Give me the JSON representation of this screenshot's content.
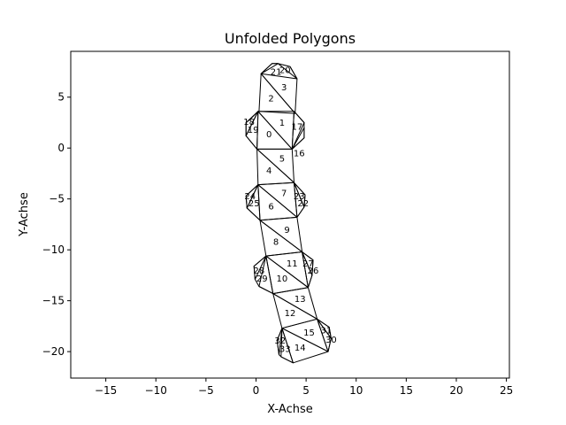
{
  "chart_data": {
    "type": "line",
    "title": "Unfolded Polygons",
    "xlabel": "X-Achse",
    "ylabel": "Y-Achse",
    "xlim": [
      -18.5,
      25.3
    ],
    "ylim": [
      -22.6,
      9.5
    ],
    "xticks": [
      -15,
      -10,
      -5,
      0,
      5,
      10,
      15,
      20,
      25
    ],
    "yticks": [
      5,
      0,
      -5,
      -10,
      -15,
      -20
    ],
    "grid": false,
    "polygons": [
      {
        "label": "0",
        "points": [
          [
            0.2,
            3.6
          ],
          [
            3.6,
            -0.1
          ],
          [
            0.1,
            -0.1
          ]
        ]
      },
      {
        "label": "1",
        "points": [
          [
            0.2,
            3.6
          ],
          [
            3.8,
            3.6
          ],
          [
            3.6,
            -0.1
          ]
        ]
      },
      {
        "label": "2",
        "points": [
          [
            0.3,
            3.6
          ],
          [
            3.9,
            3.4
          ],
          [
            0.5,
            7.3
          ]
        ]
      },
      {
        "label": "3",
        "points": [
          [
            0.5,
            7.3
          ],
          [
            4.1,
            6.8
          ],
          [
            3.9,
            3.4
          ]
        ]
      },
      {
        "label": "4",
        "points": [
          [
            0.1,
            -0.1
          ],
          [
            0.2,
            -3.6
          ],
          [
            3.8,
            -3.4
          ]
        ]
      },
      {
        "label": "5",
        "points": [
          [
            0.1,
            -0.1
          ],
          [
            3.6,
            -0.1
          ],
          [
            3.8,
            -3.4
          ]
        ]
      },
      {
        "label": "6",
        "points": [
          [
            0.2,
            -3.6
          ],
          [
            0.4,
            -7.1
          ],
          [
            4.1,
            -6.8
          ]
        ]
      },
      {
        "label": "7",
        "points": [
          [
            0.2,
            -3.6
          ],
          [
            3.8,
            -3.4
          ],
          [
            4.1,
            -6.8
          ]
        ]
      },
      {
        "label": "8",
        "points": [
          [
            0.4,
            -7.1
          ],
          [
            1.0,
            -10.6
          ],
          [
            4.6,
            -10.2
          ]
        ]
      },
      {
        "label": "9",
        "points": [
          [
            0.4,
            -7.1
          ],
          [
            4.1,
            -6.8
          ],
          [
            4.6,
            -10.2
          ]
        ]
      },
      {
        "label": "10",
        "points": [
          [
            1.0,
            -10.6
          ],
          [
            1.7,
            -14.3
          ],
          [
            5.2,
            -13.7
          ]
        ]
      },
      {
        "label": "11",
        "points": [
          [
            1.0,
            -10.6
          ],
          [
            4.6,
            -10.2
          ],
          [
            5.2,
            -13.7
          ]
        ]
      },
      {
        "label": "12",
        "points": [
          [
            1.7,
            -14.3
          ],
          [
            2.6,
            -17.7
          ],
          [
            6.1,
            -16.8
          ]
        ]
      },
      {
        "label": "13",
        "points": [
          [
            1.7,
            -14.3
          ],
          [
            5.2,
            -13.7
          ],
          [
            6.1,
            -16.8
          ]
        ]
      },
      {
        "label": "14",
        "points": [
          [
            2.6,
            -17.7
          ],
          [
            3.7,
            -21.1
          ],
          [
            7.2,
            -20.0
          ]
        ]
      },
      {
        "label": "15",
        "points": [
          [
            2.6,
            -17.7
          ],
          [
            6.1,
            -16.8
          ],
          [
            7.2,
            -20.0
          ]
        ]
      },
      {
        "label": "16",
        "points": [
          [
            3.6,
            -0.1
          ],
          [
            4.8,
            1.0
          ],
          [
            4.8,
            2.0
          ]
        ]
      },
      {
        "label": "17",
        "points": [
          [
            3.6,
            -0.1
          ],
          [
            3.8,
            3.6
          ],
          [
            4.8,
            2.5
          ]
        ]
      },
      {
        "label": "18",
        "points": [
          [
            0.2,
            3.6
          ],
          [
            -1.0,
            2.5
          ],
          [
            -1.0,
            1.2
          ]
        ]
      },
      {
        "label": "19",
        "points": [
          [
            0.2,
            3.6
          ],
          [
            0.1,
            -0.1
          ],
          [
            -1.0,
            1.2
          ]
        ]
      },
      {
        "label": "20",
        "points": [
          [
            2.2,
            8.3
          ],
          [
            3.4,
            8.0
          ],
          [
            4.1,
            6.8
          ]
        ]
      },
      {
        "label": "21",
        "points": [
          [
            0.5,
            7.3
          ],
          [
            1.6,
            8.3
          ],
          [
            2.2,
            8.3
          ]
        ]
      },
      {
        "label": "22",
        "points": [
          [
            3.8,
            -3.4
          ],
          [
            4.9,
            -4.6
          ],
          [
            4.8,
            -5.8
          ]
        ]
      },
      {
        "label": "23",
        "points": [
          [
            3.8,
            -3.4
          ],
          [
            4.1,
            -6.8
          ],
          [
            4.8,
            -5.8
          ]
        ]
      },
      {
        "label": "24",
        "points": [
          [
            0.2,
            -3.6
          ],
          [
            -1.0,
            -4.7
          ],
          [
            -0.9,
            -5.9
          ]
        ]
      },
      {
        "label": "25",
        "points": [
          [
            0.2,
            -3.6
          ],
          [
            0.4,
            -7.1
          ],
          [
            -0.9,
            -5.9
          ]
        ]
      },
      {
        "label": "26",
        "points": [
          [
            4.6,
            -10.2
          ],
          [
            5.7,
            -11.0
          ],
          [
            5.6,
            -12.5
          ]
        ]
      },
      {
        "label": "27",
        "points": [
          [
            4.6,
            -10.2
          ],
          [
            5.2,
            -13.7
          ],
          [
            5.6,
            -12.5
          ]
        ]
      },
      {
        "label": "28",
        "points": [
          [
            1.0,
            -10.6
          ],
          [
            -0.2,
            -11.6
          ],
          [
            -0.1,
            -12.9
          ]
        ]
      },
      {
        "label": "29",
        "points": [
          [
            1.0,
            -10.6
          ],
          [
            1.7,
            -14.3
          ],
          [
            0.3,
            -13.6
          ]
        ]
      },
      {
        "label": "30",
        "points": [
          [
            6.1,
            -16.8
          ],
          [
            7.3,
            -17.6
          ],
          [
            7.5,
            -18.7
          ]
        ]
      },
      {
        "label": "31",
        "points": [
          [
            6.1,
            -16.8
          ],
          [
            7.2,
            -20.0
          ],
          [
            7.5,
            -18.7
          ]
        ]
      },
      {
        "label": "32",
        "points": [
          [
            2.6,
            -17.7
          ],
          [
            2.1,
            -18.9
          ],
          [
            2.3,
            -20.3
          ]
        ]
      },
      {
        "label": "33",
        "points": [
          [
            2.6,
            -17.7
          ],
          [
            3.7,
            -21.1
          ],
          [
            2.5,
            -20.5
          ]
        ]
      }
    ],
    "outlines": [
      {
        "points": [
          [
            0.5,
            7.3
          ],
          [
            1.6,
            8.3
          ],
          [
            2.2,
            8.3
          ],
          [
            3.4,
            8.0
          ],
          [
            4.1,
            6.8
          ]
        ]
      },
      {
        "points": [
          [
            3.8,
            3.6
          ],
          [
            4.8,
            2.5
          ],
          [
            4.8,
            1.0
          ],
          [
            3.6,
            -0.1
          ]
        ]
      },
      {
        "points": [
          [
            0.2,
            3.6
          ],
          [
            -0.6,
            2.8
          ],
          [
            -1.0,
            2.5
          ],
          [
            -1.0,
            1.2
          ],
          [
            0.1,
            -0.1
          ]
        ]
      },
      {
        "points": [
          [
            3.8,
            -3.4
          ],
          [
            4.9,
            -4.6
          ],
          [
            4.8,
            -5.8
          ],
          [
            4.1,
            -6.8
          ]
        ]
      },
      {
        "points": [
          [
            0.2,
            -3.6
          ],
          [
            -1.0,
            -4.7
          ],
          [
            -0.9,
            -5.9
          ],
          [
            0.4,
            -7.1
          ]
        ]
      },
      {
        "points": [
          [
            4.6,
            -10.2
          ],
          [
            5.7,
            -11.0
          ],
          [
            5.6,
            -12.5
          ],
          [
            5.2,
            -13.7
          ]
        ]
      },
      {
        "points": [
          [
            1.0,
            -10.6
          ],
          [
            -0.2,
            -11.6
          ],
          [
            -0.1,
            -12.9
          ],
          [
            0.3,
            -13.6
          ],
          [
            1.7,
            -14.3
          ]
        ]
      },
      {
        "points": [
          [
            6.1,
            -16.8
          ],
          [
            7.3,
            -17.6
          ],
          [
            7.5,
            -18.7
          ],
          [
            7.2,
            -20.0
          ]
        ]
      },
      {
        "points": [
          [
            2.6,
            -17.7
          ],
          [
            2.1,
            -18.9
          ],
          [
            2.3,
            -20.3
          ],
          [
            2.5,
            -20.5
          ],
          [
            3.7,
            -21.1
          ]
        ]
      }
    ],
    "label_positions": [
      {
        "label": "0",
        "x": 1.3,
        "y": 1.3
      },
      {
        "label": "1",
        "x": 2.6,
        "y": 2.4
      },
      {
        "label": "2",
        "x": 1.5,
        "y": 4.8
      },
      {
        "label": "3",
        "x": 2.8,
        "y": 5.9
      },
      {
        "label": "4",
        "x": 1.3,
        "y": -2.3
      },
      {
        "label": "5",
        "x": 2.6,
        "y": -1.1
      },
      {
        "label": "6",
        "x": 1.5,
        "y": -5.8
      },
      {
        "label": "7",
        "x": 2.8,
        "y": -4.5
      },
      {
        "label": "8",
        "x": 2.0,
        "y": -9.3
      },
      {
        "label": "9",
        "x": 3.1,
        "y": -8.1
      },
      {
        "label": "10",
        "x": 2.6,
        "y": -12.9
      },
      {
        "label": "11",
        "x": 3.6,
        "y": -11.4
      },
      {
        "label": "12",
        "x": 3.4,
        "y": -16.3
      },
      {
        "label": "13",
        "x": 4.4,
        "y": -14.9
      },
      {
        "label": "14",
        "x": 4.4,
        "y": -19.7
      },
      {
        "label": "15",
        "x": 5.3,
        "y": -18.2
      },
      {
        "label": "16",
        "x": 4.3,
        "y": -0.6
      },
      {
        "label": "17",
        "x": 4.1,
        "y": 2.0
      },
      {
        "label": "18",
        "x": -0.7,
        "y": 2.5
      },
      {
        "label": "19",
        "x": -0.3,
        "y": 1.7
      },
      {
        "label": "20",
        "x": 2.9,
        "y": 7.6
      },
      {
        "label": "21",
        "x": 2.0,
        "y": 7.4
      },
      {
        "label": "22",
        "x": 4.7,
        "y": -5.5
      },
      {
        "label": "23",
        "x": 4.3,
        "y": -4.8
      },
      {
        "label": "24",
        "x": -0.6,
        "y": -4.8
      },
      {
        "label": "25",
        "x": -0.2,
        "y": -5.5
      },
      {
        "label": "26",
        "x": 5.7,
        "y": -12.1
      },
      {
        "label": "27",
        "x": 5.2,
        "y": -11.4
      },
      {
        "label": "28",
        "x": 0.3,
        "y": -12.1
      },
      {
        "label": "29",
        "x": 0.6,
        "y": -12.9
      },
      {
        "label": "30",
        "x": 7.5,
        "y": -18.9
      },
      {
        "label": "31",
        "x": 7.0,
        "y": -18.0
      },
      {
        "label": "32",
        "x": 2.4,
        "y": -19.0
      },
      {
        "label": "33",
        "x": 2.9,
        "y": -19.8
      }
    ]
  }
}
